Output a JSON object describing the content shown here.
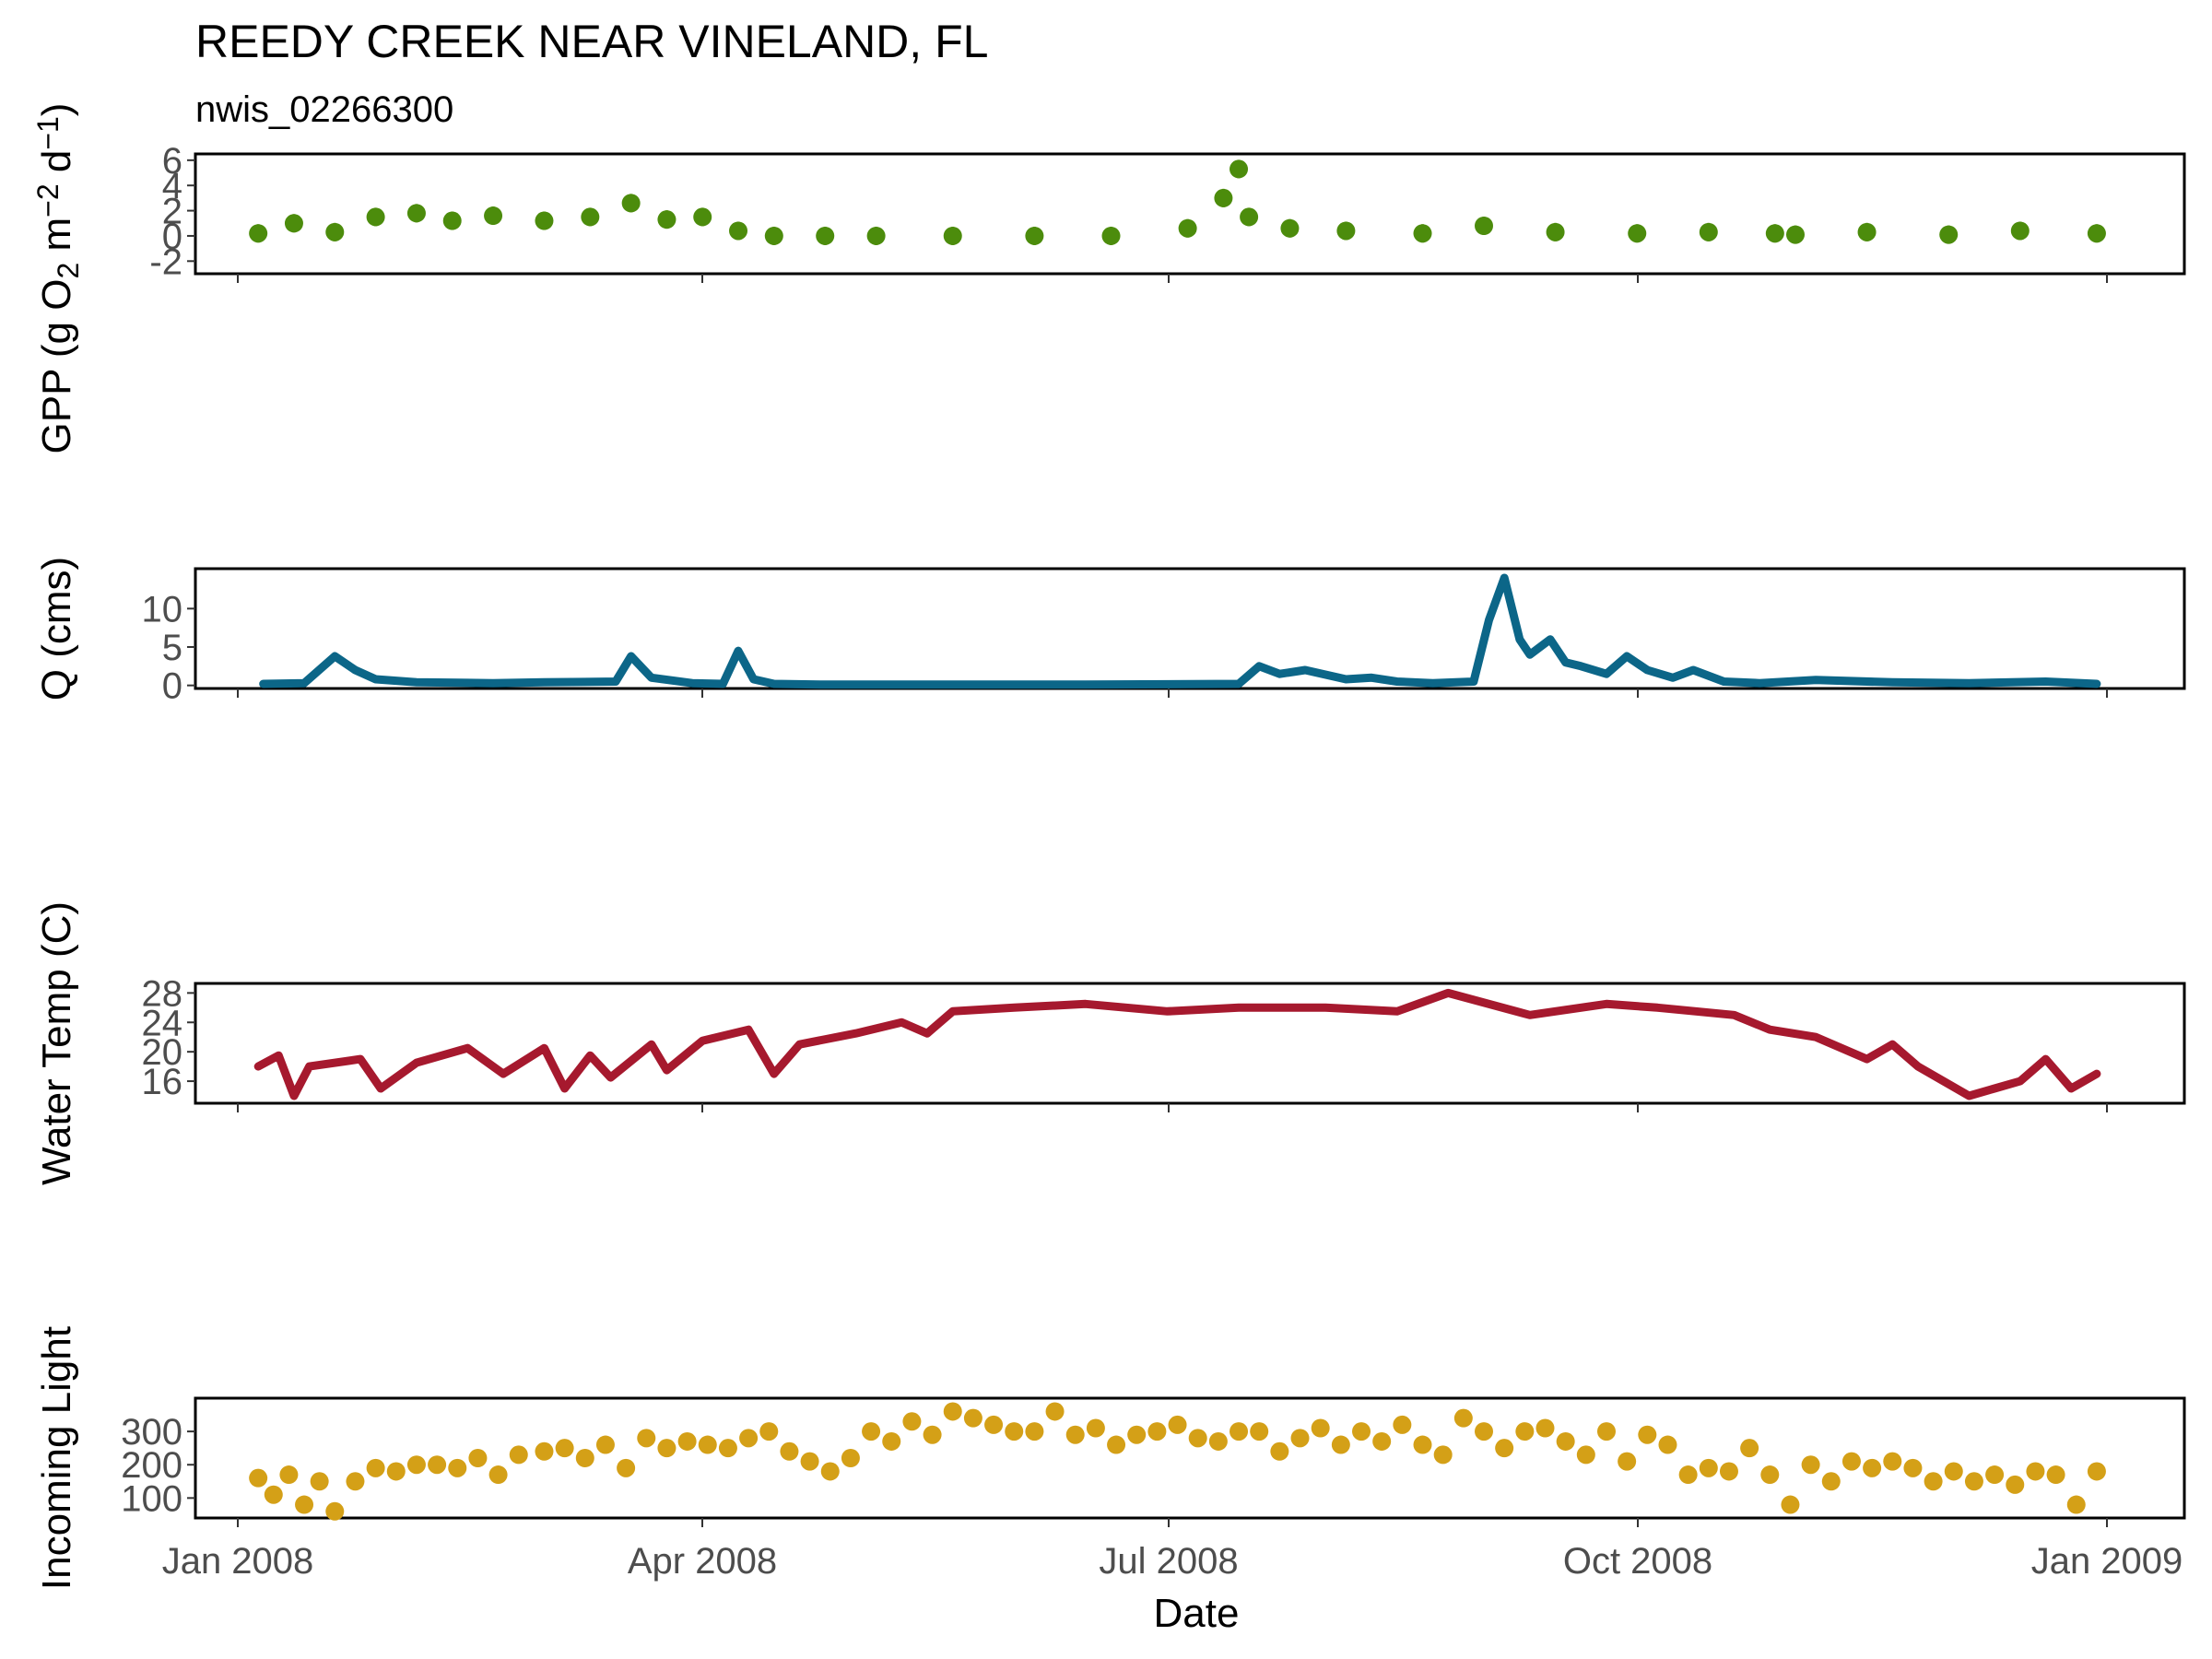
{
  "title": "REEDY CREEK NEAR VINELAND, FL",
  "subtitle": "nwis_02266300",
  "xlabel": "Date",
  "x_ticks": [
    "Jan 2008",
    "Apr 2008",
    "Jul 2008",
    "Oct 2008",
    "Jan 2009"
  ],
  "chart_data": [
    {
      "type": "scatter",
      "panel": "gpp",
      "ylabel_parts": [
        "GPP (g  O",
        "2",
        " m",
        "−2",
        " d",
        "−1",
        ")"
      ],
      "ylim": [
        -3,
        6.5
      ],
      "yticks": [
        -2,
        0,
        2,
        4,
        6
      ],
      "ytick_labels": [
        "-2",
        "0",
        "2",
        "4",
        "6"
      ],
      "color": "#4c8c0c",
      "error_bars": true,
      "x": [
        "2008-01-05",
        "2008-01-12",
        "2008-01-20",
        "2008-01-28",
        "2008-02-05",
        "2008-02-12",
        "2008-02-20",
        "2008-03-01",
        "2008-03-10",
        "2008-03-18",
        "2008-03-25",
        "2008-04-01",
        "2008-04-08",
        "2008-04-15",
        "2008-04-25",
        "2008-05-05",
        "2008-05-20",
        "2008-06-05",
        "2008-06-20",
        "2008-07-05",
        "2008-07-12",
        "2008-07-15",
        "2008-07-17",
        "2008-07-25",
        "2008-08-05",
        "2008-08-20",
        "2008-09-01",
        "2008-09-15",
        "2008-10-01",
        "2008-10-15",
        "2008-10-28",
        "2008-11-01",
        "2008-11-15",
        "2008-12-01",
        "2008-12-15",
        "2008-12-30"
      ],
      "y": [
        0.2,
        1.0,
        0.3,
        1.5,
        1.8,
        1.2,
        1.6,
        1.2,
        1.5,
        2.6,
        1.3,
        1.5,
        0.4,
        0.0,
        0.0,
        0.0,
        0.0,
        0.0,
        0.0,
        0.6,
        3.0,
        5.3,
        1.5,
        0.6,
        0.4,
        0.2,
        0.8,
        0.3,
        0.2,
        0.3,
        0.2,
        0.1,
        0.3,
        0.1,
        0.4,
        0.2
      ]
    },
    {
      "type": "line",
      "panel": "discharge",
      "ylabel": "Q (cms)",
      "ylim": [
        -0.4,
        15.2
      ],
      "yticks": [
        0,
        5,
        10
      ],
      "ytick_labels": [
        "0",
        "5",
        "10"
      ],
      "color": "#0c6688",
      "x": [
        "2008-01-06",
        "2008-01-14",
        "2008-01-20",
        "2008-01-24",
        "2008-01-28",
        "2008-02-05",
        "2008-02-20",
        "2008-03-01",
        "2008-03-15",
        "2008-03-18",
        "2008-03-22",
        "2008-03-30",
        "2008-04-05",
        "2008-04-08",
        "2008-04-11",
        "2008-04-15",
        "2008-04-25",
        "2008-05-15",
        "2008-06-15",
        "2008-07-15",
        "2008-07-19",
        "2008-07-23",
        "2008-07-28",
        "2008-08-05",
        "2008-08-10",
        "2008-08-15",
        "2008-08-22",
        "2008-08-30",
        "2008-09-02",
        "2008-09-05",
        "2008-09-08",
        "2008-09-10",
        "2008-09-14",
        "2008-09-17",
        "2008-09-20",
        "2008-09-25",
        "2008-09-29",
        "2008-10-03",
        "2008-10-08",
        "2008-10-12",
        "2008-10-18",
        "2008-10-25",
        "2008-11-05",
        "2008-11-20",
        "2008-12-05",
        "2008-12-20",
        "2008-12-30"
      ],
      "y": [
        0.2,
        0.3,
        3.8,
        2.0,
        0.8,
        0.4,
        0.3,
        0.4,
        0.5,
        3.8,
        1.0,
        0.3,
        0.2,
        4.5,
        0.8,
        0.2,
        0.1,
        0.1,
        0.1,
        0.2,
        2.5,
        1.5,
        2.0,
        0.8,
        1.0,
        0.5,
        0.3,
        0.5,
        8.5,
        14.0,
        6.0,
        4.0,
        6.0,
        3.0,
        2.5,
        1.5,
        3.8,
        2.0,
        1.0,
        2.0,
        0.5,
        0.3,
        0.7,
        0.4,
        0.3,
        0.5,
        0.2
      ]
    },
    {
      "type": "line",
      "panel": "water_temp",
      "ylabel": "Water Temp (C)",
      "ylim": [
        13,
        29.3
      ],
      "yticks": [
        16,
        20,
        24,
        28
      ],
      "ytick_labels": [
        "16",
        "20",
        "24",
        "28"
      ],
      "color": "#a6192e",
      "x": [
        "2008-01-05",
        "2008-01-09",
        "2008-01-12",
        "2008-01-15",
        "2008-01-25",
        "2008-01-29",
        "2008-02-05",
        "2008-02-15",
        "2008-02-22",
        "2008-03-01",
        "2008-03-05",
        "2008-03-10",
        "2008-03-14",
        "2008-03-22",
        "2008-03-25",
        "2008-04-01",
        "2008-04-10",
        "2008-04-15",
        "2008-04-20",
        "2008-05-01",
        "2008-05-10",
        "2008-05-15",
        "2008-05-20",
        "2008-06-01",
        "2008-06-15",
        "2008-07-01",
        "2008-07-15",
        "2008-08-01",
        "2008-08-15",
        "2008-08-25",
        "2008-09-10",
        "2008-09-25",
        "2008-10-05",
        "2008-10-20",
        "2008-10-27",
        "2008-11-05",
        "2008-11-15",
        "2008-11-20",
        "2008-11-25",
        "2008-12-05",
        "2008-12-10",
        "2008-12-15",
        "2008-12-20",
        "2008-12-25",
        "2008-12-30"
      ],
      "y": [
        18,
        19.5,
        14,
        18,
        19,
        15,
        18.5,
        20.5,
        17,
        20.5,
        15,
        19.5,
        16.5,
        21,
        17.5,
        21.5,
        23,
        17,
        21,
        22.5,
        24,
        22.5,
        25.5,
        26,
        26.5,
        25.5,
        26,
        26,
        25.5,
        28,
        25,
        26.5,
        26,
        25,
        23,
        22,
        19,
        21,
        18,
        14,
        15,
        16,
        19,
        15,
        17
      ]
    },
    {
      "type": "scatter",
      "panel": "light",
      "ylabel": "Incoming Light",
      "ylim": [
        40,
        400
      ],
      "yticks": [
        100,
        200,
        300
      ],
      "ytick_labels": [
        "100",
        "200",
        "300"
      ],
      "color": "#d4a017",
      "x": [
        "2008-01-05",
        "2008-01-08",
        "2008-01-11",
        "2008-01-14",
        "2008-01-17",
        "2008-01-20",
        "2008-01-24",
        "2008-01-28",
        "2008-02-01",
        "2008-02-05",
        "2008-02-09",
        "2008-02-13",
        "2008-02-17",
        "2008-02-21",
        "2008-02-25",
        "2008-03-01",
        "2008-03-05",
        "2008-03-09",
        "2008-03-13",
        "2008-03-17",
        "2008-03-21",
        "2008-03-25",
        "2008-03-29",
        "2008-04-02",
        "2008-04-06",
        "2008-04-10",
        "2008-04-14",
        "2008-04-18",
        "2008-04-22",
        "2008-04-26",
        "2008-04-30",
        "2008-05-04",
        "2008-05-08",
        "2008-05-12",
        "2008-05-16",
        "2008-05-20",
        "2008-05-24",
        "2008-05-28",
        "2008-06-01",
        "2008-06-05",
        "2008-06-09",
        "2008-06-13",
        "2008-06-17",
        "2008-06-21",
        "2008-06-25",
        "2008-06-29",
        "2008-07-03",
        "2008-07-07",
        "2008-07-11",
        "2008-07-15",
        "2008-07-19",
        "2008-07-23",
        "2008-07-27",
        "2008-07-31",
        "2008-08-04",
        "2008-08-08",
        "2008-08-12",
        "2008-08-16",
        "2008-08-20",
        "2008-08-24",
        "2008-08-28",
        "2008-09-01",
        "2008-09-05",
        "2008-09-09",
        "2008-09-13",
        "2008-09-17",
        "2008-09-21",
        "2008-09-25",
        "2008-09-29",
        "2008-10-03",
        "2008-10-07",
        "2008-10-11",
        "2008-10-15",
        "2008-10-19",
        "2008-10-23",
        "2008-10-27",
        "2008-10-31",
        "2008-11-04",
        "2008-11-08",
        "2008-11-12",
        "2008-11-16",
        "2008-11-20",
        "2008-11-24",
        "2008-11-28",
        "2008-12-02",
        "2008-12-06",
        "2008-12-10",
        "2008-12-14",
        "2008-12-18",
        "2008-12-22",
        "2008-12-26",
        "2008-12-30"
      ],
      "y": [
        160,
        110,
        170,
        80,
        150,
        60,
        150,
        190,
        180,
        200,
        200,
        190,
        220,
        170,
        230,
        240,
        250,
        220,
        260,
        190,
        280,
        250,
        270,
        260,
        250,
        280,
        300,
        240,
        210,
        180,
        220,
        300,
        270,
        330,
        290,
        360,
        340,
        320,
        300,
        300,
        360,
        290,
        310,
        260,
        290,
        300,
        320,
        280,
        270,
        300,
        300,
        240,
        280,
        310,
        260,
        300,
        270,
        320,
        260,
        230,
        340,
        300,
        250,
        300,
        310,
        270,
        230,
        300,
        210,
        290,
        260,
        170,
        190,
        180,
        250,
        170,
        80,
        200,
        150,
        210,
        190,
        210,
        190,
        150,
        180,
        150,
        170,
        140,
        180,
        170,
        80,
        180
      ]
    }
  ]
}
